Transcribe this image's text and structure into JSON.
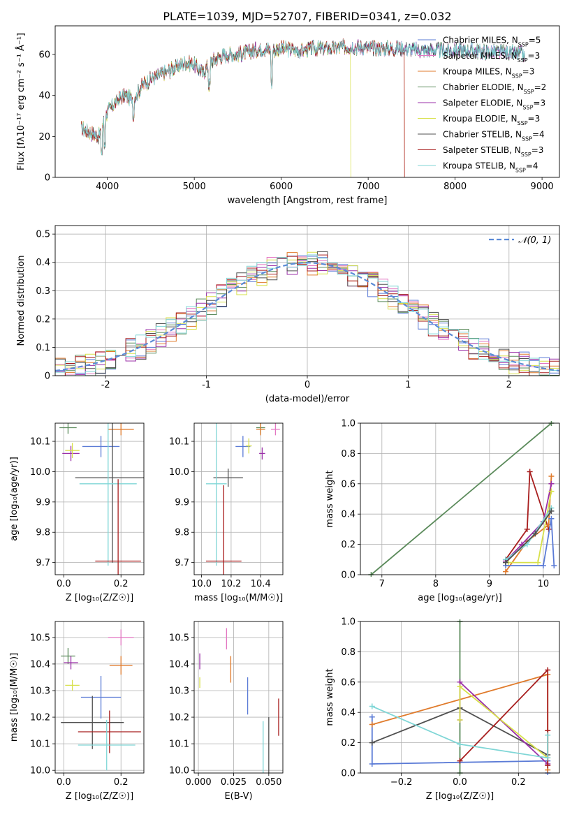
{
  "figure": {
    "title": "PLATE=1039, MJD=52707, FIBERID=0341, z=0.032"
  },
  "chart_data": [
    {
      "id": "spectrum",
      "type": "line",
      "xlabel": "wavelength [Angstrom, rest frame]",
      "ylabel": "Flux [fλ10⁻¹⁷ erg cm⁻² s⁻¹ Å⁻¹]",
      "xlim": [
        3400,
        9200
      ],
      "ylim": [
        0,
        74
      ],
      "xticks": [
        4000,
        5000,
        6000,
        7000,
        8000,
        9000
      ],
      "yticks": [
        0,
        20,
        40,
        60
      ],
      "grid": false,
      "legend": "right",
      "continuum": {
        "x": [
          3700,
          3800,
          3900,
          4000,
          4100,
          4200,
          4300,
          4400,
          4500,
          4600,
          4700,
          4800,
          4900,
          5000,
          5100,
          5200,
          5300,
          5400,
          5500,
          5600,
          5700,
          5800,
          5900,
          6000,
          6200,
          6400,
          6600,
          6800,
          7000,
          7200,
          7400,
          7600,
          7800,
          8000,
          8200,
          8400,
          8600,
          8800
        ],
        "y": [
          24,
          22,
          20,
          32,
          37,
          40,
          38,
          45,
          48,
          50,
          52,
          54,
          56,
          55,
          51,
          57,
          59,
          60,
          60,
          61,
          62,
          63,
          62,
          63,
          62,
          63,
          63,
          64,
          63,
          63,
          63,
          62,
          62,
          62,
          62,
          61,
          61,
          60
        ]
      },
      "series": [
        {
          "name": "Chabrier MILES, N_SSP=5",
          "color": "#5b7bd6",
          "dropout": null
        },
        {
          "name": "Salpeter MILES, N_SSP=3",
          "color": "#e377c2",
          "dropout": null
        },
        {
          "name": "Kroupa MILES, N_SSP=3",
          "color": "#e07b2c",
          "dropout": 7420
        },
        {
          "name": "Chabrier ELODIE, N_SSP=2",
          "color": "#5a8a5a",
          "dropout": null
        },
        {
          "name": "Salpeter ELODIE, N_SSP=3",
          "color": "#9b30a8",
          "dropout": null
        },
        {
          "name": "Kroupa ELODIE, N_SSP=3",
          "color": "#d7e04a",
          "dropout": 6800
        },
        {
          "name": "Chabrier STELIB, N_SSP=4",
          "color": "#505050",
          "dropout": null
        },
        {
          "name": "Salpeter STELIB, N_SSP=3",
          "color": "#a81e1e",
          "dropout": 7420
        },
        {
          "name": "Kroupa STELIB, N_SSP=4",
          "color": "#7fd6d6",
          "dropout": null
        }
      ]
    },
    {
      "id": "residuals",
      "type": "histogram",
      "xlabel": "(data-model)/error",
      "ylabel": "Normed distribution",
      "xlim": [
        -2.5,
        2.5
      ],
      "ylim": [
        0,
        0.53
      ],
      "xticks": [
        -2,
        -1,
        0,
        1,
        2
      ],
      "yticks": [
        0.0,
        0.1,
        0.2,
        0.3,
        0.4,
        0.5
      ],
      "grid": true,
      "legend": "top-right",
      "reference_curve": {
        "name": "N(0,1)",
        "color": "#5b8bd6",
        "dash": true,
        "legend_label": "𝒩(0, 1)"
      },
      "bin_width": 0.1
    },
    {
      "id": "age-vs-Z",
      "type": "errorbar",
      "xlabel": "Z [log₁₀(Z/Z☉)]",
      "ylabel": "age  [log₁₀(age/yr)]",
      "xlim": [
        -0.03,
        0.28
      ],
      "ylim": [
        9.66,
        10.16
      ],
      "xticks": [
        0.0,
        0.2
      ],
      "xtick_labels": [
        "0.0",
        "0.2"
      ],
      "yticks": [
        9.7,
        9.8,
        9.9,
        10.0,
        10.1
      ],
      "yticks_labels": [
        "9.7",
        "9.8",
        "9.9",
        "10.0",
        "10.1"
      ],
      "grid": true,
      "points": [
        {
          "color": "#5a8a5a",
          "x": 0.015,
          "y": 10.145,
          "xerr": 0.03,
          "yerr": 0.02
        },
        {
          "color": "#e07b2c",
          "x": 0.2,
          "y": 10.14,
          "xerr": 0.045,
          "yerr": 0.02
        },
        {
          "color": "#5b7bd6",
          "x": 0.13,
          "y": 10.083,
          "xerr": 0.065,
          "yerr": 0.035
        },
        {
          "color": "#9b30a8",
          "x": 0.025,
          "y": 10.06,
          "xerr": 0.03,
          "yerr": 0.025
        },
        {
          "color": "#d7e04a",
          "x": 0.03,
          "y": 10.07,
          "xerr": 0.025,
          "yerr": 0.025
        },
        {
          "color": "#505050",
          "x": 0.17,
          "y": 9.98,
          "xerr": 0.13,
          "yerr": 0.28
        },
        {
          "color": "#7fd6d6",
          "x": 0.155,
          "y": 9.96,
          "xerr": 0.1,
          "yerr": 0.27
        },
        {
          "color": "#a81e1e",
          "x": 0.19,
          "y": 9.705,
          "xerr": 0.08,
          "yerr": 0.27
        }
      ]
    },
    {
      "id": "age-vs-mass",
      "type": "errorbar",
      "xlabel": "mass [log₁₀(M/M☉)]",
      "ylabel": "",
      "xlim": [
        9.95,
        10.55
      ],
      "ylim": [
        9.66,
        10.16
      ],
      "xticks": [
        10.0,
        10.2,
        10.4
      ],
      "xtick_labels": [
        "10.0",
        "10.2",
        "10.4"
      ],
      "yticks": [
        9.7,
        9.8,
        9.9,
        10.0,
        10.1
      ],
      "yticks_labels": [
        "9.7",
        "9.8",
        "9.9",
        "10.0",
        "10.1"
      ],
      "grid": true,
      "points": [
        {
          "color": "#5a8a5a",
          "x": 10.4,
          "y": 10.145,
          "xerr": 0.03,
          "yerr": 0.02
        },
        {
          "color": "#e07b2c",
          "x": 10.4,
          "y": 10.14,
          "xerr": 0.03,
          "yerr": 0.02
        },
        {
          "color": "#e377c2",
          "x": 10.5,
          "y": 10.14,
          "xerr": 0.03,
          "yerr": 0.02
        },
        {
          "color": "#5b7bd6",
          "x": 10.28,
          "y": 10.083,
          "xerr": 0.05,
          "yerr": 0.035
        },
        {
          "color": "#d7e04a",
          "x": 10.32,
          "y": 10.085,
          "xerr": 0.02,
          "yerr": 0.025
        },
        {
          "color": "#9b30a8",
          "x": 10.41,
          "y": 10.06,
          "xerr": 0.02,
          "yerr": 0.02
        },
        {
          "color": "#505050",
          "x": 10.18,
          "y": 9.98,
          "xerr": 0.1,
          "yerr": 0.03
        },
        {
          "color": "#7fd6d6",
          "x": 10.1,
          "y": 9.96,
          "xerr": 0.07,
          "yerr": 0.27
        },
        {
          "color": "#a81e1e",
          "x": 10.15,
          "y": 9.705,
          "xerr": 0.12,
          "yerr": 0.25
        }
      ]
    },
    {
      "id": "massweight-vs-age",
      "type": "line",
      "xlabel": "age  [log₁₀(age/yr)]",
      "ylabel": "mass weight",
      "xlim": [
        6.6,
        10.3
      ],
      "ylim": [
        0,
        1.0
      ],
      "xticks": [
        7,
        8,
        9,
        10
      ],
      "xtick_labels": [
        "7",
        "8",
        "9",
        "10"
      ],
      "yticks": [
        0.0,
        0.2,
        0.4,
        0.6,
        0.8,
        1.0
      ],
      "yticks_labels": [
        "0.0",
        "0.2",
        "0.4",
        "0.6",
        "0.8",
        "1.0"
      ],
      "grid": true,
      "series": [
        {
          "color": "#5a8a5a",
          "x": [
            6.8,
            10.15
          ],
          "y": [
            0.0,
            1.0
          ]
        },
        {
          "color": "#a81e1e",
          "x": [
            9.3,
            9.7,
            9.75,
            10.1
          ],
          "y": [
            0.1,
            0.3,
            0.68,
            0.3
          ]
        },
        {
          "color": "#e07b2c",
          "x": [
            9.3,
            9.7,
            10.1,
            10.15
          ],
          "y": [
            0.02,
            0.22,
            0.33,
            0.65
          ]
        },
        {
          "color": "#9b30a8",
          "x": [
            9.3,
            9.6,
            10.0,
            10.15
          ],
          "y": [
            0.09,
            0.2,
            0.35,
            0.6
          ]
        },
        {
          "color": "#d7e04a",
          "x": [
            9.35,
            9.9,
            10.15
          ],
          "y": [
            0.08,
            0.08,
            0.55
          ]
        },
        {
          "color": "#5b7bd6",
          "x": [
            9.3,
            10.0,
            10.15,
            10.2
          ],
          "y": [
            0.06,
            0.06,
            0.37,
            0.06
          ]
        },
        {
          "color": "#7fd6d6",
          "x": [
            9.3,
            9.7,
            10.15
          ],
          "y": [
            0.1,
            0.2,
            0.44
          ]
        },
        {
          "color": "#505050",
          "x": [
            9.3,
            9.85,
            10.15
          ],
          "y": [
            0.08,
            0.27,
            0.42
          ]
        }
      ]
    },
    {
      "id": "mass-vs-Z",
      "type": "errorbar",
      "xlabel": "Z [log₁₀(Z/Z☉)]",
      "ylabel": "mass [log₁₀(M/M☉)]",
      "xlim": [
        -0.03,
        0.28
      ],
      "ylim": [
        9.99,
        10.56
      ],
      "xticks": [
        0.0,
        0.2
      ],
      "xtick_labels": [
        "0.0",
        "0.2"
      ],
      "yticks": [
        10.0,
        10.1,
        10.2,
        10.3,
        10.4,
        10.5
      ],
      "yticks_labels": [
        "10.0",
        "10.1",
        "10.2",
        "10.3",
        "10.4",
        "10.5"
      ],
      "grid": true,
      "points": [
        {
          "color": "#e377c2",
          "x": 0.2,
          "y": 10.5,
          "xerr": 0.045,
          "yerr": 0.03
        },
        {
          "color": "#5a8a5a",
          "x": 0.015,
          "y": 10.43,
          "xerr": 0.025,
          "yerr": 0.03
        },
        {
          "color": "#9b30a8",
          "x": 0.025,
          "y": 10.405,
          "xerr": 0.025,
          "yerr": 0.025
        },
        {
          "color": "#e07b2c",
          "x": 0.2,
          "y": 10.395,
          "xerr": 0.04,
          "yerr": 0.035
        },
        {
          "color": "#d7e04a",
          "x": 0.03,
          "y": 10.32,
          "xerr": 0.025,
          "yerr": 0.02
        },
        {
          "color": "#5b7bd6",
          "x": 0.13,
          "y": 10.275,
          "xerr": 0.07,
          "yerr": 0.08
        },
        {
          "color": "#505050",
          "x": 0.1,
          "y": 10.18,
          "xerr": 0.11,
          "yerr": 0.1
        },
        {
          "color": "#a81e1e",
          "x": 0.16,
          "y": 10.145,
          "xerr": 0.11,
          "yerr": 0.08
        },
        {
          "color": "#7fd6d6",
          "x": 0.15,
          "y": 10.095,
          "xerr": 0.1,
          "yerr": 0.095
        }
      ]
    },
    {
      "id": "mass-vs-ebv",
      "type": "errorbar",
      "xlabel": "E(B-V)",
      "ylabel": "",
      "xlim": [
        -0.003,
        0.06
      ],
      "ylim": [
        9.99,
        10.56
      ],
      "xticks": [
        0.0,
        0.025,
        0.05
      ],
      "xtick_labels": [
        "0.000",
        "0.025",
        "0.050"
      ],
      "yticks": [
        10.0,
        10.1,
        10.2,
        10.3,
        10.4,
        10.5
      ],
      "yticks_labels": [
        "10.0",
        "10.1",
        "10.2",
        "10.3",
        "10.4",
        "10.5"
      ],
      "grid": true,
      "points": [
        {
          "color": "#e377c2",
          "x": 0.02,
          "y": 10.495,
          "xerr": 0,
          "yerr": 0.04
        },
        {
          "color": "#9b30a8",
          "x": 0.001,
          "y": 10.41,
          "xerr": 0,
          "yerr": 0.03
        },
        {
          "color": "#e07b2c",
          "x": 0.023,
          "y": 10.38,
          "xerr": 0,
          "yerr": 0.05
        },
        {
          "color": "#d7e04a",
          "x": 0.001,
          "y": 10.33,
          "xerr": 0,
          "yerr": 0.02
        },
        {
          "color": "#5b7bd6",
          "x": 0.035,
          "y": 10.28,
          "xerr": 0,
          "yerr": 0.07
        },
        {
          "color": "#a81e1e",
          "x": 0.057,
          "y": 10.2,
          "xerr": 0,
          "yerr": 0.07
        },
        {
          "color": "#505050",
          "x": 0.05,
          "y": 10.08,
          "xerr": 0,
          "yerr": 0.12
        },
        {
          "color": "#7fd6d6",
          "x": 0.046,
          "y": 10.075,
          "xerr": 0,
          "yerr": 0.11
        }
      ]
    },
    {
      "id": "massweight-vs-Z",
      "type": "line",
      "xlabel": "Z [log₁₀(Z/Z☉)]",
      "ylabel": "mass weight",
      "xlim": [
        -0.34,
        0.34
      ],
      "ylim": [
        0,
        1.0
      ],
      "xticks": [
        -0.2,
        0.0,
        0.2
      ],
      "xtick_labels": [
        "−0.2",
        "0.0",
        "0.2"
      ],
      "yticks": [
        0.0,
        0.2,
        0.4,
        0.6,
        0.8,
        1.0
      ],
      "yticks_labels": [
        "0.0",
        "0.2",
        "0.4",
        "0.6",
        "0.8",
        "1.0"
      ],
      "grid": true,
      "series": [
        {
          "color": "#5a8a5a",
          "x": [
            0.0,
            0.0
          ],
          "y": [
            0.0,
            1.0
          ]
        },
        {
          "color": "#5b7bd6",
          "x": [
            -0.3,
            -0.3,
            0.3,
            0.3
          ],
          "y": [
            0.37,
            0.06,
            0.08,
            0.0
          ]
        },
        {
          "color": "#e07b2c",
          "x": [
            -0.3,
            0.3,
            0.3
          ],
          "y": [
            0.32,
            0.65,
            0.02
          ]
        },
        {
          "color": "#505050",
          "x": [
            -0.3,
            0.0,
            0.3
          ],
          "y": [
            0.2,
            0.43,
            0.12
          ]
        },
        {
          "color": "#9b30a8",
          "x": [
            0.0,
            0.0,
            0.3
          ],
          "y": [
            0.35,
            0.6,
            0.06
          ]
        },
        {
          "color": "#d7e04a",
          "x": [
            0.0,
            0.0,
            0.3
          ],
          "y": [
            0.35,
            0.57,
            0.1
          ]
        },
        {
          "color": "#a81e1e",
          "x": [
            0.0,
            0.3,
            0.3,
            0.3
          ],
          "y": [
            0.08,
            0.68,
            0.28,
            0.05
          ]
        },
        {
          "color": "#7fd6d6",
          "x": [
            -0.3,
            0.0,
            0.3,
            0.3
          ],
          "y": [
            0.44,
            0.19,
            0.1,
            0.25
          ]
        }
      ]
    }
  ]
}
